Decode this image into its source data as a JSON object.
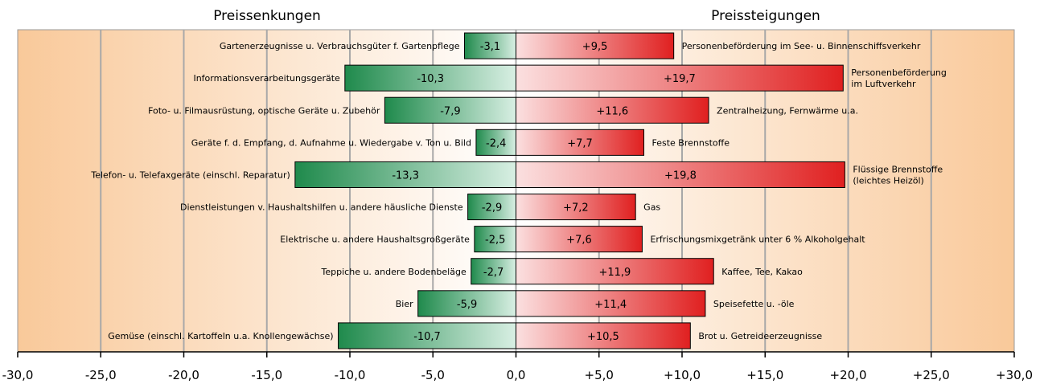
{
  "chart_data": {
    "type": "bar",
    "orientation": "horizontal-diverging",
    "headings": {
      "left": "Preissenkungen",
      "right": "Preissteigungen"
    },
    "xlim": [
      -30,
      30
    ],
    "x_ticks": [
      -30,
      -25,
      -20,
      -15,
      -10,
      -5,
      0,
      5,
      10,
      15,
      20,
      25,
      30
    ],
    "x_tick_labels": [
      "-30,0",
      "-25,0",
      "-20,0",
      "-15,0",
      "-10,0",
      "-5,0",
      "0,0",
      "+5,0",
      "+10,0",
      "+15,0",
      "+20,0",
      "+25,0",
      "+30,0"
    ],
    "grid": true,
    "colors": {
      "background_outer": "#f9c99a",
      "background_inner": "#ffffff",
      "negative_bar_dark": "#1f8a4c",
      "negative_bar_light": "#d8efe3",
      "positive_bar_light": "#fbe0e0",
      "positive_bar_dark": "#e02020",
      "gridline": "#a8a8a8",
      "axis": "#000000"
    },
    "rows": [
      {
        "neg_category": "Gartenerzeugnisse u. Verbrauchsgüter f. Gartenpflege",
        "neg_value": -3.1,
        "neg_label": "-3,1",
        "pos_category": [
          "Personenbeförderung im See- u. Binnenschiffsverkehr"
        ],
        "pos_value": 9.5,
        "pos_label": "+9,5"
      },
      {
        "neg_category": "Informationsverarbeitungsgeräte",
        "neg_value": -10.3,
        "neg_label": "-10,3",
        "pos_category": [
          "Personenbeförderung",
          "im Luftverkehr"
        ],
        "pos_value": 19.7,
        "pos_label": "+19,7"
      },
      {
        "neg_category": "Foto- u. Filmausrüstung, optische Geräte u. Zubehör",
        "neg_value": -7.9,
        "neg_label": "-7,9",
        "pos_category": [
          "Zentralheizung, Fernwärme u.a."
        ],
        "pos_value": 11.6,
        "pos_label": "+11,6"
      },
      {
        "neg_category": "Geräte f. d. Empfang, d. Aufnahme u. Wiedergabe v. Ton u. Bild",
        "neg_value": -2.4,
        "neg_label": "-2,4",
        "pos_category": [
          "Feste Brennstoffe"
        ],
        "pos_value": 7.7,
        "pos_label": "+7,7"
      },
      {
        "neg_category": "Telefon- u. Telefaxgeräte (einschl. Reparatur)",
        "neg_value": -13.3,
        "neg_label": "-13,3",
        "pos_category": [
          "Flüssige Brennstoffe",
          "(leichtes Heizöl)"
        ],
        "pos_value": 19.8,
        "pos_label": "+19,8"
      },
      {
        "neg_category": "Dienstleistungen v. Haushaltshilfen u. andere häusliche Dienste",
        "neg_value": -2.9,
        "neg_label": "-2,9",
        "pos_category": [
          "Gas"
        ],
        "pos_value": 7.2,
        "pos_label": "+7,2"
      },
      {
        "neg_category": "Elektrische u. andere Haushaltsgroßgeräte",
        "neg_value": -2.5,
        "neg_label": "-2,5",
        "pos_category": [
          "Erfrischungsmixgetränk unter 6 % Alkoholgehalt"
        ],
        "pos_value": 7.6,
        "pos_label": "+7,6"
      },
      {
        "neg_category": "Teppiche u. andere Bodenbeläge",
        "neg_value": -2.7,
        "neg_label": "-2,7",
        "pos_category": [
          "Kaffee, Tee, Kakao"
        ],
        "pos_value": 11.9,
        "pos_label": "+11,9"
      },
      {
        "neg_category": "Bier",
        "neg_value": -5.9,
        "neg_label": "-5,9",
        "pos_category": [
          "Speisefette u. -öle"
        ],
        "pos_value": 11.4,
        "pos_label": "+11,4"
      },
      {
        "neg_category": "Gemüse (einschl. Kartoffeln u.a. Knollengewächse)",
        "neg_value": -10.7,
        "neg_label": "-10,7",
        "pos_category": [
          "Brot u. Getreideerzeugnisse"
        ],
        "pos_value": 10.5,
        "pos_label": "+10,5"
      }
    ]
  }
}
